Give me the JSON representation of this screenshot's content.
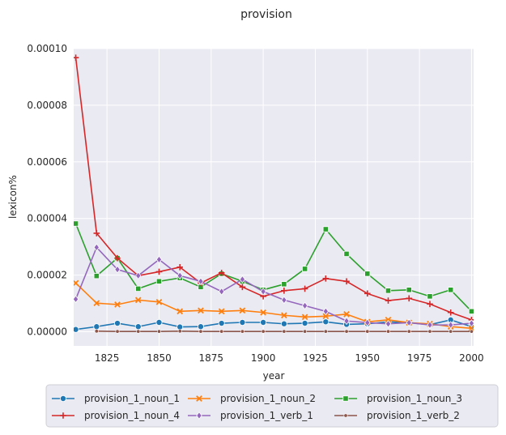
{
  "chart_data": {
    "type": "line",
    "title": "provision",
    "xlabel": "year",
    "ylabel": "lexicon%",
    "xlim": [
      1809,
      2001
    ],
    "ylim": [
      -5e-06,
      0.0001
    ],
    "x_ticks": [
      1825,
      1850,
      1875,
      1900,
      1925,
      1950,
      1975,
      2000
    ],
    "x_tick_labels": [
      "1825",
      "1850",
      "1875",
      "1900",
      "1925",
      "1950",
      "1975",
      "2000"
    ],
    "y_ticks": [
      0,
      2e-05,
      4e-05,
      6e-05,
      8e-05,
      0.0001
    ],
    "y_tick_labels": [
      "0.00000",
      "0.00002",
      "0.00004",
      "0.00006",
      "0.00008",
      "0.00010"
    ],
    "grid": true,
    "legend_position": "bottom",
    "x": [
      1810,
      1820,
      1830,
      1840,
      1850,
      1860,
      1870,
      1880,
      1890,
      1900,
      1910,
      1920,
      1930,
      1940,
      1950,
      1960,
      1970,
      1980,
      1990,
      2000
    ],
    "series": [
      {
        "name": "provision_1_noun_1",
        "color": "#1f77b4",
        "marker": "circle",
        "values": [
          8e-07,
          1.8e-06,
          3e-06,
          1.8e-06,
          3.3e-06,
          1.7e-06,
          1.8e-06,
          3e-06,
          3.3e-06,
          3.3e-06,
          2.8e-06,
          3e-06,
          3.5e-06,
          2.6e-06,
          2.8e-06,
          3.5e-06,
          3.2e-06,
          2.5e-06,
          4.2e-06,
          1.8e-06
        ]
      },
      {
        "name": "provision_1_noun_2",
        "color": "#ff7f0e",
        "marker": "x",
        "values": [
          1.72e-05,
          1.01e-05,
          9.6e-06,
          1.12e-05,
          1.05e-05,
          7.2e-06,
          7.5e-06,
          7.2e-06,
          7.5e-06,
          6.8e-06,
          5.8e-06,
          5.2e-06,
          5.5e-06,
          6.2e-06,
          3.5e-06,
          4.2e-06,
          3.2e-06,
          2.8e-06,
          1.8e-06,
          1.2e-06
        ]
      },
      {
        "name": "provision_1_noun_3",
        "color": "#2ca02c",
        "marker": "square",
        "values": [
          3.82e-05,
          1.97e-05,
          2.6e-05,
          1.52e-05,
          1.78e-05,
          1.9e-05,
          1.58e-05,
          2.05e-05,
          1.78e-05,
          1.48e-05,
          1.68e-05,
          2.22e-05,
          3.62e-05,
          2.75e-05,
          2.05e-05,
          1.45e-05,
          1.48e-05,
          1.25e-05,
          1.48e-05,
          7.2e-06
        ]
      },
      {
        "name": "provision_1_noun_4",
        "color": "#d62728",
        "marker": "plus",
        "values": [
          9.68e-05,
          3.48e-05,
          2.6e-05,
          1.98e-05,
          2.12e-05,
          2.28e-05,
          1.72e-05,
          2.08e-05,
          1.58e-05,
          1.25e-05,
          1.45e-05,
          1.52e-05,
          1.88e-05,
          1.78e-05,
          1.35e-05,
          1.1e-05,
          1.18e-05,
          9.8e-06,
          6.8e-06,
          4.2e-06
        ]
      },
      {
        "name": "provision_1_verb_1",
        "color": "#9467bd",
        "marker": "diamond",
        "values": [
          1.15e-05,
          2.98e-05,
          2.2e-05,
          1.98e-05,
          2.55e-05,
          1.98e-05,
          1.78e-05,
          1.42e-05,
          1.85e-05,
          1.42e-05,
          1.12e-05,
          9.2e-06,
          7.2e-06,
          3.8e-06,
          3.2e-06,
          2.8e-06,
          3.2e-06,
          2.4e-06,
          2.4e-06,
          3e-06
        ]
      },
      {
        "name": "provision_1_verb_2",
        "color": "#8c564b",
        "marker": "dot",
        "values": [
          null,
          2e-07,
          1e-07,
          1e-07,
          1e-07,
          2e-07,
          1e-07,
          1e-07,
          1e-07,
          1e-07,
          1e-07,
          1e-07,
          1e-07,
          1e-07,
          1e-07,
          1e-07,
          1e-07,
          1e-07,
          1e-07,
          1e-07
        ]
      }
    ]
  }
}
